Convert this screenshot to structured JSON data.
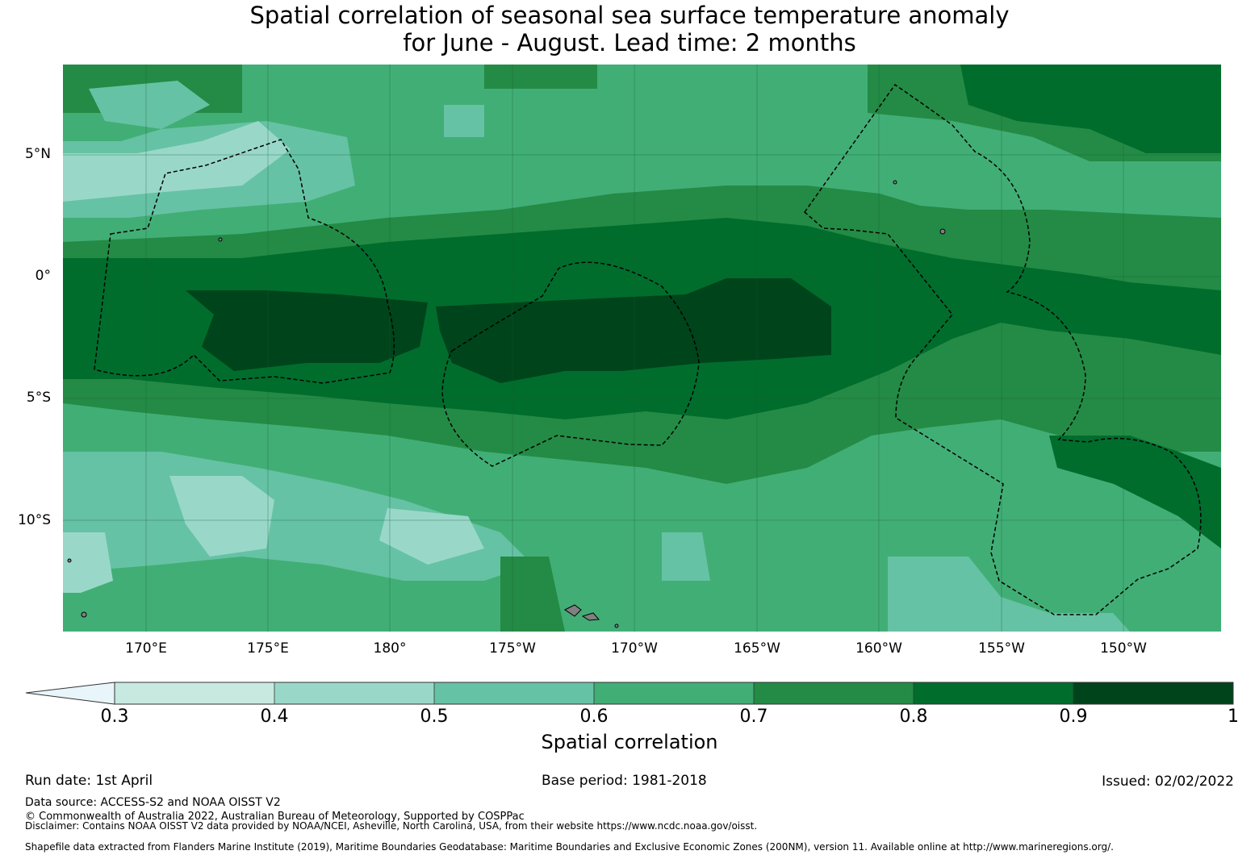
{
  "title": {
    "line1": "Spatial correlation of seasonal sea surface temperature anomaly",
    "line2": "for June - August. Lead time: 2 months"
  },
  "map": {
    "lat_labels": [
      "5°N",
      "0°",
      "5°S",
      "10°S"
    ],
    "lon_labels": [
      "170°E",
      "175°E",
      "180°",
      "175°W",
      "170°W",
      "165°W",
      "160°W",
      "155°W",
      "150°W"
    ],
    "land_color": "#808080",
    "boundary_style": "dashed black"
  },
  "colorbar": {
    "ticks": [
      "0.3",
      "0.4",
      "0.5",
      "0.6",
      "0.7",
      "0.8",
      "0.9",
      "1"
    ],
    "colors": [
      "#e8f5fa",
      "#c7e9e0",
      "#99d8c9",
      "#66c2a4",
      "#41ae76",
      "#238b45",
      "#006d2c",
      "#00441b"
    ],
    "label": "Spatial correlation"
  },
  "footer": {
    "run_date": "Run date: 1st April",
    "base_period": "Base period: 1981-2018",
    "issued": "Issued: 02/02/2022",
    "data_source": "Data source: ACCESS-S2 and NOAA OISST V2",
    "copyright": "© Commonwealth of Australia 2022, Australian Bureau of Meteorology, Supported by COSPPac",
    "disclaimer": "Disclaimer: Contains NOAA OISST V2 data provided by NOAA/NCEI, Asheville, North Carolina, USA, from their website https://www.ncdc.noaa.gov/oisst.",
    "shapefile": "Shapefile data extracted from Flanders Marine Institute (2019), Maritime Boundaries Geodatabase: Maritime Boundaries and Exclusive Economic Zones (200NM), version 11. Available online at http://www.marineregions.org/."
  }
}
